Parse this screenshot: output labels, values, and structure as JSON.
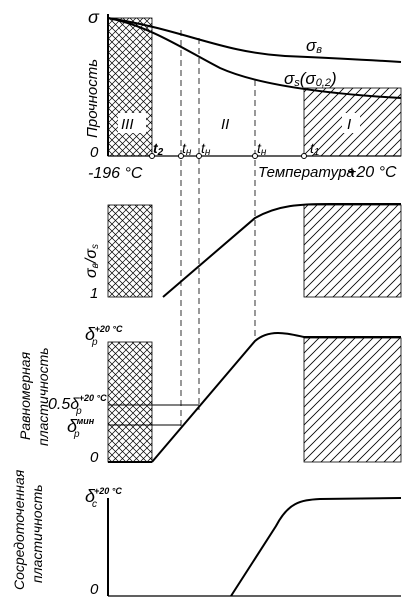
{
  "panel1": {
    "y_top": "σ",
    "y_zero": "0",
    "ylabel": "Прочность",
    "curve_ultimate": "σ",
    "curve_ultimate_sub": "в",
    "curve_yield": "σ",
    "curve_yield_sub": "s",
    "curve_yield_paren": "(σ",
    "curve_yield_paren_sub": "0,2",
    "curve_yield_close": ")",
    "region_3": "III",
    "region_2": "II",
    "region_1": "I",
    "t2": "t",
    "t2_sub": "2",
    "tn": "t",
    "tn_sub": "н",
    "t1": "t",
    "t1_sub": "1",
    "x_left": "-196 °C",
    "x_label": "Температура",
    "x_right": "+20 °C"
  },
  "panel2": {
    "ylabel_num": "σ",
    "ylabel_num_sub": "в",
    "ylabel_sep": "/",
    "ylabel_den": "σ",
    "ylabel_den_sub": "s",
    "y_one": "1"
  },
  "panel3": {
    "ylabel_line1": "Равномерная",
    "ylabel_line2": "пластичность",
    "y_top": "δ",
    "y_top_sub": "p",
    "y_top_sup": "+20 °C",
    "y_half_prefix": "0.5δ",
    "y_half_sub": "p",
    "y_half_sup": "+20 °C",
    "y_min": "δ",
    "y_min_sub": "p",
    "y_min_sup": "мин",
    "y_zero": "0"
  },
  "panel4": {
    "ylabel_line1": "Сосредоточенная",
    "ylabel_line2": "пластичность",
    "y_top": "δ",
    "y_top_sub": "c",
    "y_top_sup": "+20 °C",
    "y_zero": "0"
  }
}
